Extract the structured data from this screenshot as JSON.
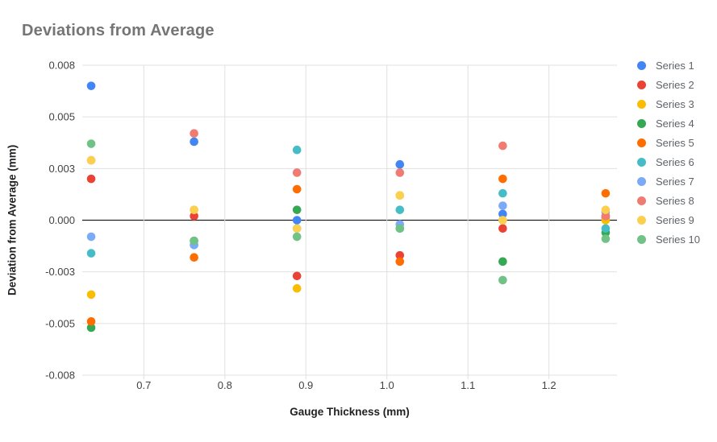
{
  "chart_data": {
    "type": "scatter",
    "title": "Deviations from Average",
    "xlabel": "Gauge Thickness (mm)",
    "ylabel": "Deviation from Average (mm)",
    "legend_position": "right",
    "grid": true,
    "xlim": [
      0.624,
      1.284
    ],
    "ylim": [
      -0.0075,
      0.0075
    ],
    "x_ticks": [
      0.7,
      0.8,
      0.9,
      1.0,
      1.1,
      1.2
    ],
    "x_tick_labels": [
      "0.7",
      "0.8",
      "0.9",
      "1.0",
      "1.1",
      "1.2"
    ],
    "y_tick_values": [
      0.0075,
      0.005,
      0.0025,
      0,
      -0.0025,
      -0.005,
      -0.0075
    ],
    "y_tick_labels": [
      "0.008",
      "0.005",
      "0.003",
      "0.000",
      "-0.003",
      "-0.005",
      "-0.008"
    ],
    "baseline_value": 0,
    "x": [
      0.635,
      0.762,
      0.889,
      1.016,
      1.143,
      1.27
    ],
    "series": [
      {
        "name": "Series 1",
        "color": "#4285F4",
        "values": [
          0.0065,
          0.0038,
          0.0,
          0.0027,
          0.0003,
          0.0001
        ]
      },
      {
        "name": "Series 2",
        "color": "#EA4335",
        "values": [
          0.002,
          0.0002,
          -0.0027,
          -0.0017,
          -0.0004,
          0.0002
        ]
      },
      {
        "name": "Series 3",
        "color": "#FBBC04",
        "values": [
          -0.0036,
          0.0005,
          -0.0033,
          0.0012,
          0.0,
          0.0
        ]
      },
      {
        "name": "Series 4",
        "color": "#34A853",
        "values": [
          -0.0052,
          -0.001,
          0.0005,
          -0.0004,
          -0.002,
          -0.0006
        ]
      },
      {
        "name": "Series 5",
        "color": "#FF6D01",
        "values": [
          -0.0049,
          -0.0018,
          0.0015,
          -0.002,
          0.002,
          0.0013
        ]
      },
      {
        "name": "Series 6",
        "color": "#46BDC6",
        "values": [
          -0.0016,
          -0.0012,
          0.0034,
          0.0005,
          0.0013,
          -0.0004
        ]
      },
      {
        "name": "Series 7",
        "color": "#7BAAF7",
        "values": [
          -0.0008,
          -0.0012,
          -0.0004,
          -0.0002,
          0.0007,
          0.0004
        ]
      },
      {
        "name": "Series 8",
        "color": "#F07B72",
        "values": [
          0.0029,
          0.0042,
          0.0023,
          0.0023,
          0.0036,
          0.0002
        ]
      },
      {
        "name": "Series 9",
        "color": "#FCD04F",
        "values": [
          0.0029,
          0.0005,
          -0.0004,
          0.0012,
          0.0,
          0.0005
        ]
      },
      {
        "name": "Series 10",
        "color": "#71C287",
        "values": [
          0.0037,
          -0.001,
          -0.0008,
          -0.0004,
          -0.0029,
          -0.0009
        ]
      }
    ],
    "colors": {
      "title_text": "#757575",
      "axis_tick_text": "#424242",
      "axis_title_text": "#202124",
      "legend_text": "#5f6368",
      "gridline": "#e0e0e0",
      "baseline": "#212121",
      "background": "#ffffff"
    }
  }
}
